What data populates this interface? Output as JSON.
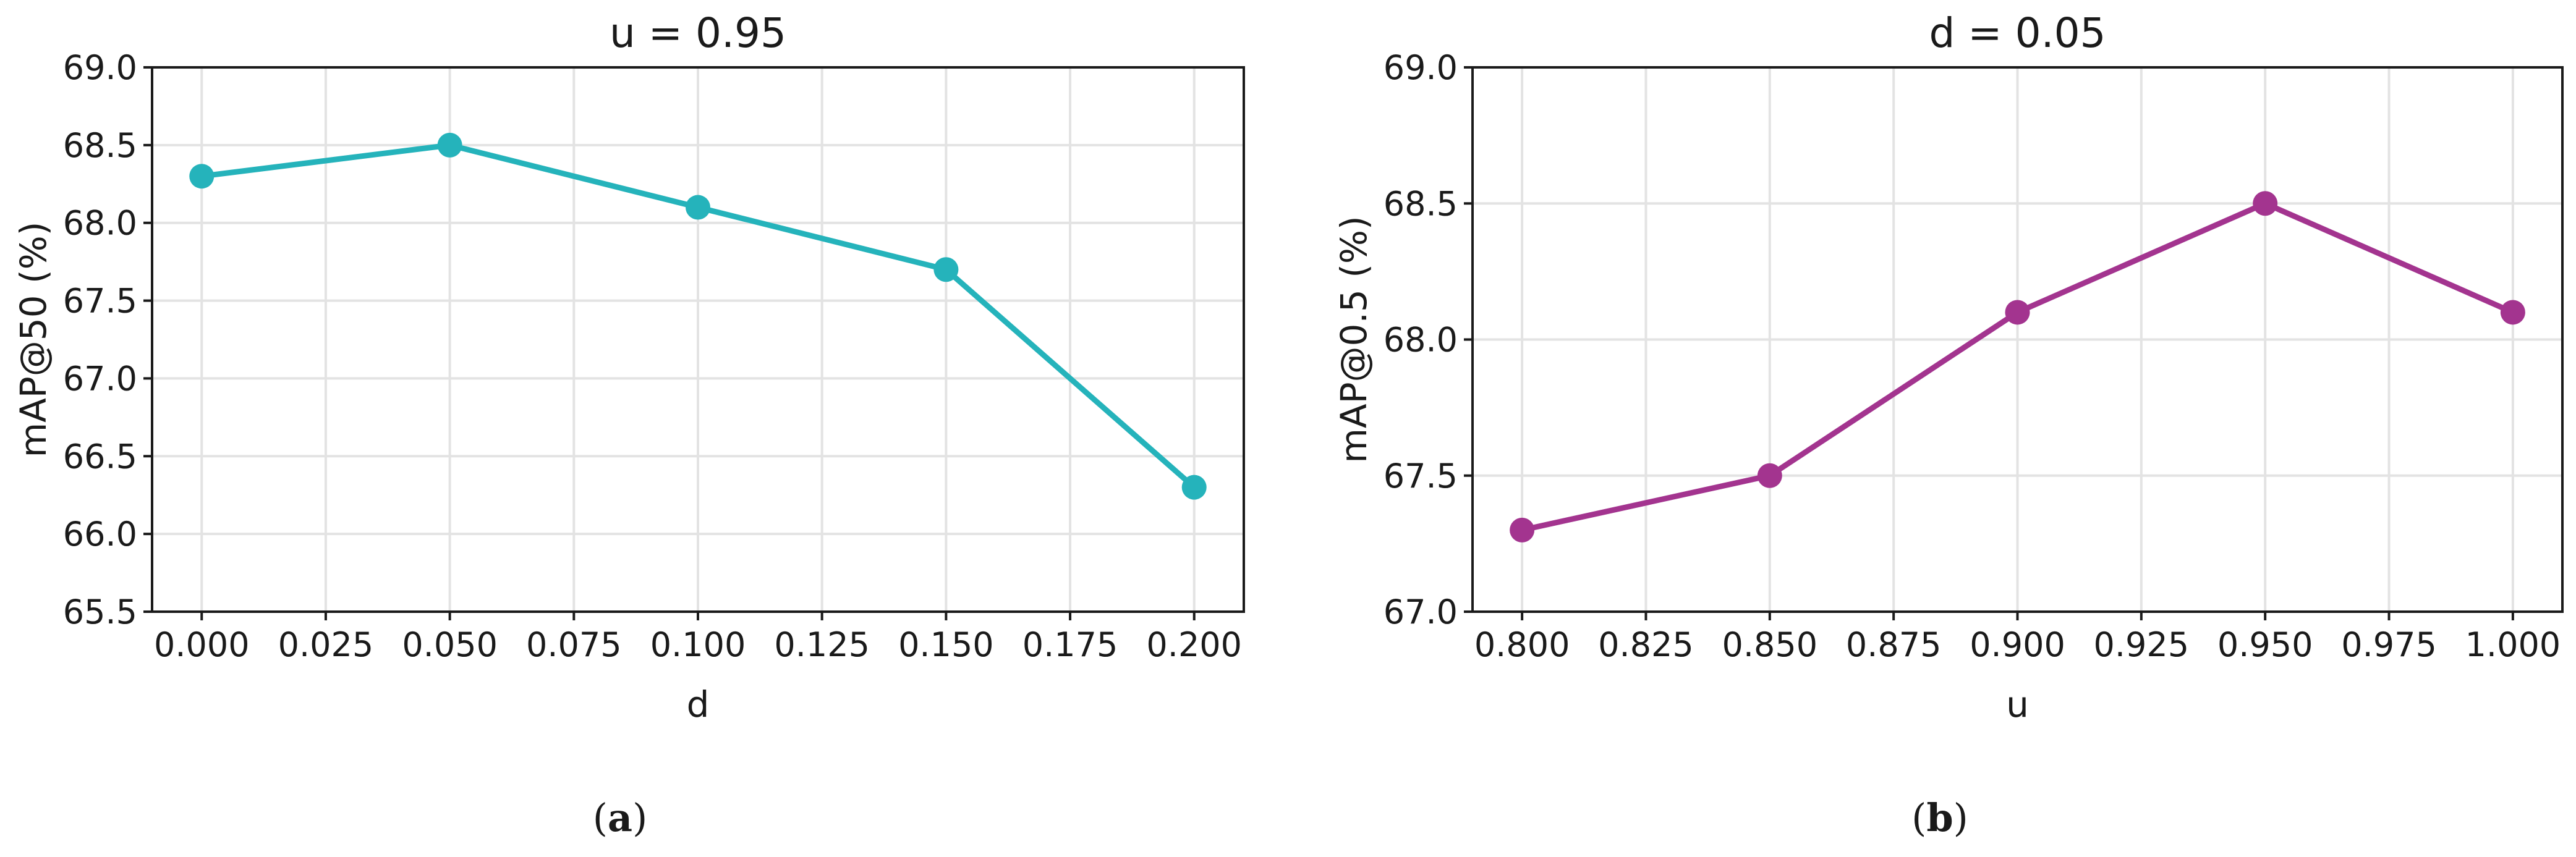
{
  "chart_data": [
    {
      "id": "a",
      "type": "line",
      "title": "u = 0.95",
      "xlabel": "d",
      "ylabel": "mAP@50 (%)",
      "caption": {
        "open": "(",
        "label": "a",
        "close": ")"
      },
      "x": [
        0.0,
        0.05,
        0.1,
        0.15,
        0.2
      ],
      "series": [
        {
          "values": [
            68.3,
            68.5,
            68.1,
            67.7,
            66.3
          ],
          "color": "#25b3bb"
        }
      ],
      "xlim": [
        -0.01,
        0.21
      ],
      "ylim": [
        65.5,
        69.0
      ],
      "xticks": [
        0.0,
        0.025,
        0.05,
        0.075,
        0.1,
        0.125,
        0.15,
        0.175,
        0.2
      ],
      "xtick_labels": [
        "0.000",
        "0.025",
        "0.050",
        "0.075",
        "0.100",
        "0.125",
        "0.150",
        "0.175",
        "0.200"
      ],
      "yticks": [
        65.5,
        66.0,
        66.5,
        67.0,
        67.5,
        68.0,
        68.5,
        69.0
      ],
      "ytick_labels": [
        "65.5",
        "66.0",
        "66.5",
        "67.0",
        "67.5",
        "68.0",
        "68.5",
        "69.0"
      ],
      "grid": true,
      "legend": "none"
    },
    {
      "id": "b",
      "type": "line",
      "title": "d = 0.05",
      "xlabel": "u",
      "ylabel": "mAP@0.5 (%)",
      "caption": {
        "open": "(",
        "label": "b",
        "close": ")"
      },
      "x": [
        0.8,
        0.85,
        0.9,
        0.95,
        1.0
      ],
      "series": [
        {
          "values": [
            67.3,
            67.5,
            68.1,
            68.5,
            68.1
          ],
          "color": "#a3348f"
        }
      ],
      "xlim": [
        0.79,
        1.01
      ],
      "ylim": [
        67.0,
        69.0
      ],
      "xticks": [
        0.8,
        0.825,
        0.85,
        0.875,
        0.9,
        0.925,
        0.95,
        0.975,
        1.0
      ],
      "xtick_labels": [
        "0.800",
        "0.825",
        "0.850",
        "0.875",
        "0.900",
        "0.925",
        "0.950",
        "0.975",
        "1.000"
      ],
      "yticks": [
        67.0,
        67.5,
        68.0,
        68.5,
        69.0
      ],
      "ytick_labels": [
        "67.0",
        "67.5",
        "68.0",
        "68.5",
        "69.0"
      ],
      "grid": true,
      "legend": "none"
    }
  ]
}
